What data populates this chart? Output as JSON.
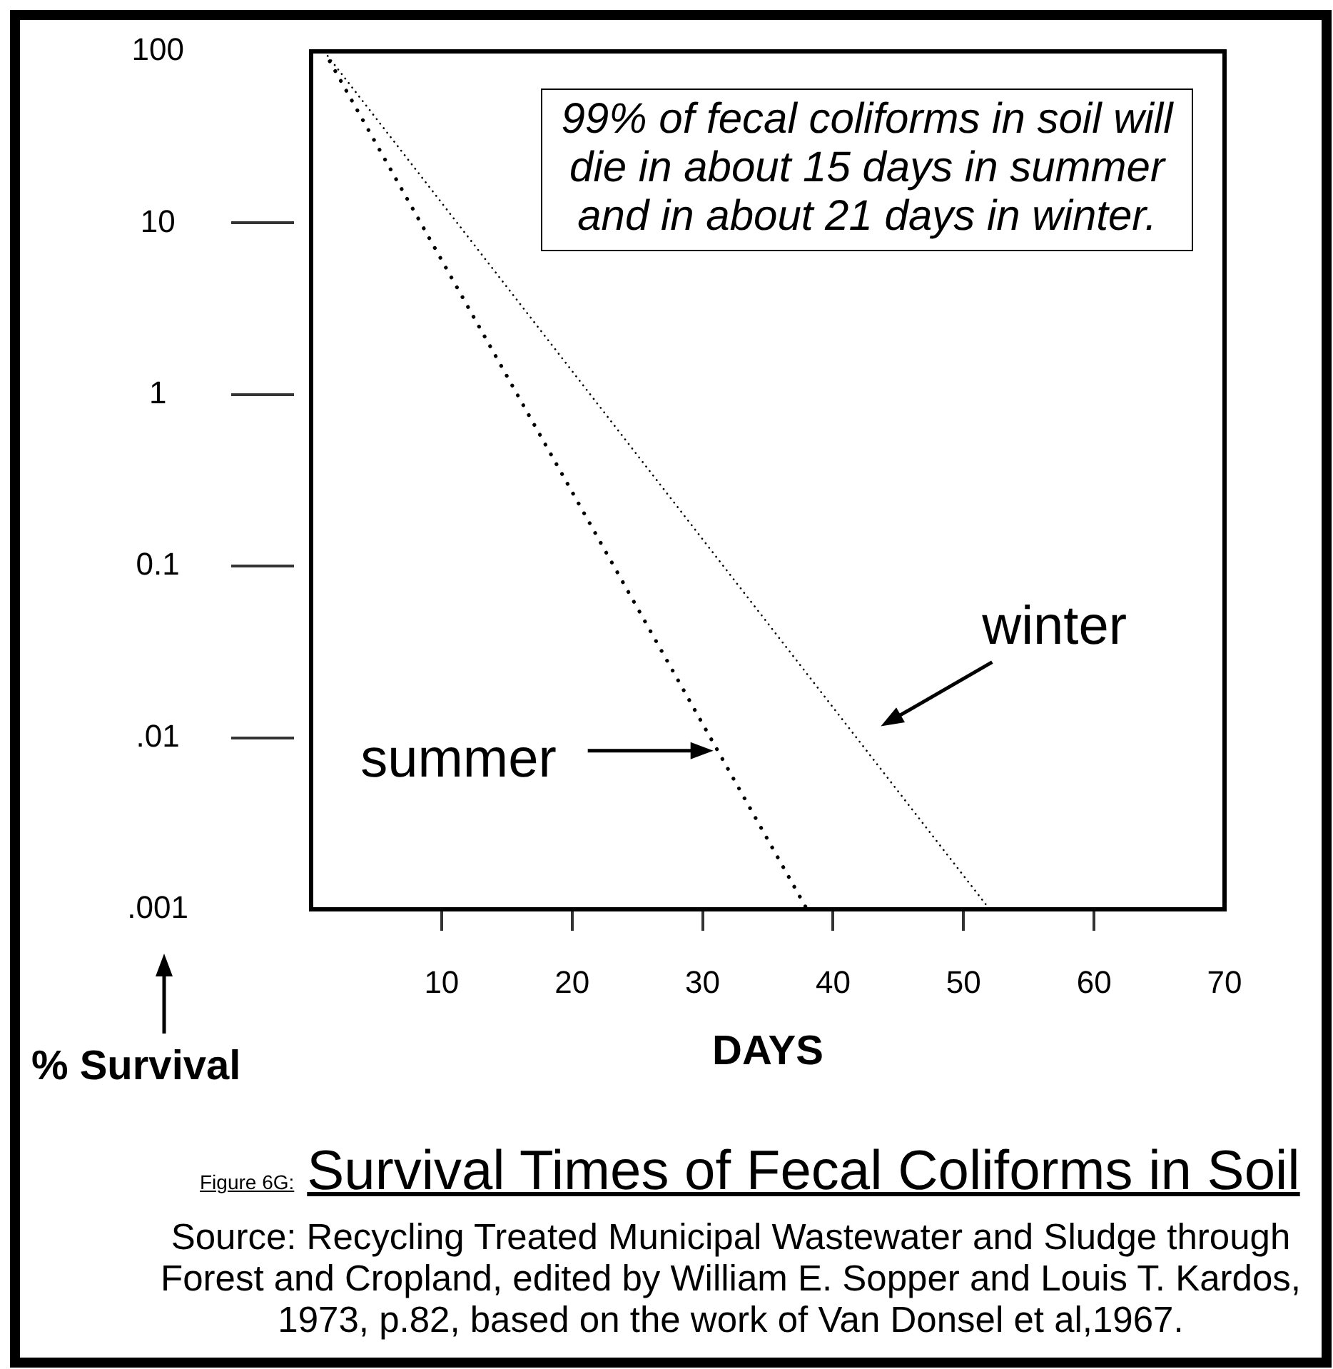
{
  "chart_data": {
    "type": "line",
    "title": "Survival Times of Fecal Coliforms in Soil",
    "xlabel": "DAYS",
    "ylabel": "% Survival",
    "annotations": [
      "99% of fecal coliforms in soil will die in about 15 days in summer and in about 21 days in winter.",
      "Figure 6G:",
      "Source: Recycling Treated Municipal Wastewater and Sludge through Forest and Cropland, edited by William E. Sopper and Louis T. Kardos, 1973, p.82, based on the work of Van Donsel et al,1967."
    ],
    "series": [
      {
        "name": "summer",
        "color": "#000000",
        "x": [
          1,
          38
        ],
        "values": [
          100,
          0.001
        ],
        "line_style": "dotted"
      },
      {
        "name": "winter",
        "color": "#000000",
        "x": [
          1,
          52
        ],
        "values": [
          100,
          0.001
        ],
        "line_style": "dotted"
      }
    ],
    "xlim": [
      0,
      70
    ],
    "xticks": [
      10,
      20,
      30,
      40,
      50,
      60,
      70
    ],
    "ylim": [
      0.001,
      100
    ],
    "yticks": [
      {
        "value": 0.001,
        "label": ".001"
      },
      {
        "value": 0.01,
        "label": ".01"
      },
      0.1,
      1,
      10,
      100
    ],
    "log": "y",
    "legend": false,
    "marker": "none"
  }
}
